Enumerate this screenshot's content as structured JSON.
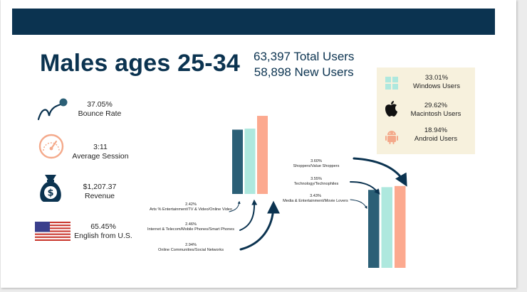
{
  "colors": {
    "navy": "#0b3350",
    "teal": "#2b5f76",
    "mint": "#aee8de",
    "salmon": "#fca98f",
    "apricot": "#f4a98a",
    "panel": "#f7f1dd",
    "flag_red": "#c9362c",
    "flag_blue": "#3a3f8c"
  },
  "title": "Males ages 25-34",
  "users": {
    "total": "63,397 Total Users",
    "new": "58,898 New Users"
  },
  "metrics": [
    {
      "icon": "bounce-icon",
      "value": "37.05%",
      "label": "Bounce Rate"
    },
    {
      "icon": "speedometer-icon",
      "value": "3:11",
      "label": "Average Session"
    },
    {
      "icon": "money-bag-icon",
      "value": "$1,207.37",
      "label": "Revenue"
    },
    {
      "icon": "us-flag-icon",
      "value": "65.45%",
      "label": "English from U.S."
    }
  ],
  "os": [
    {
      "icon": "windows-icon",
      "value": "33.01%",
      "label": "Windows Users"
    },
    {
      "icon": "apple-icon",
      "value": "29.62%",
      "label": "Macintosh Users"
    },
    {
      "icon": "android-icon",
      "value": "18.94%",
      "label": "Android Users"
    }
  ],
  "chart_data": [
    {
      "type": "bar",
      "series": [
        {
          "value": 2.42,
          "label": "Arts % Entertainment/TV & Video/Online Video",
          "display": "2.42%"
        },
        {
          "value": 2.46,
          "label": "Internet & Telecom/Mobile Phones/Smart Phones",
          "display": "2.46%"
        },
        {
          "value": 2.94,
          "label": "Online Communities/Social Networks",
          "display": "2.94%"
        }
      ]
    },
    {
      "type": "bar",
      "series": [
        {
          "value": 3.43,
          "label": "Media & Entertainment/Movie Lovers",
          "display": "3.43%"
        },
        {
          "value": 3.55,
          "label": "Technology/Technophiles",
          "display": "3.55%"
        },
        {
          "value": 3.6,
          "label": "Shoppers/Value Shoppers",
          "display": "3.60%"
        }
      ]
    }
  ]
}
